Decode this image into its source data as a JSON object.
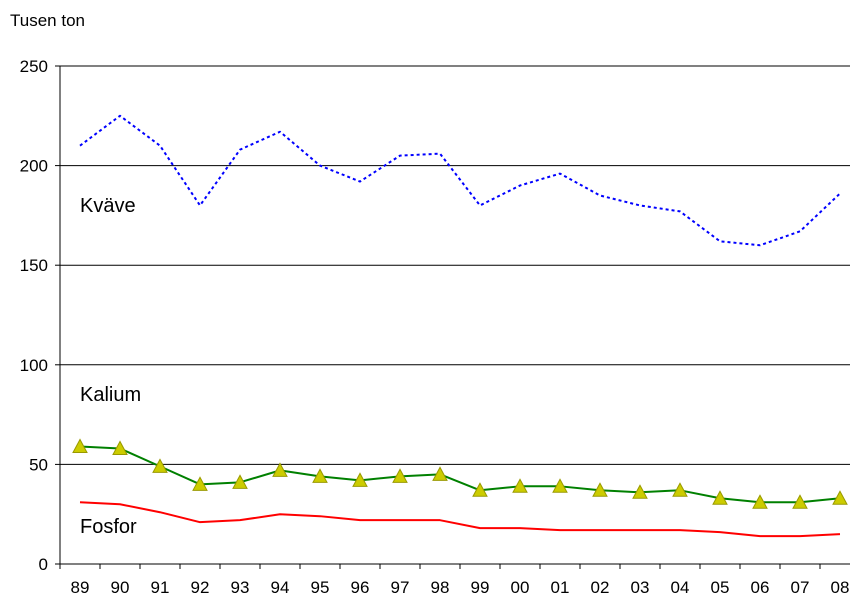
{
  "chart_data": {
    "type": "line",
    "ylabel": "Tusen ton",
    "xlabel": "",
    "ylim": [
      0,
      250
    ],
    "yticks": [
      0,
      50,
      100,
      150,
      200,
      250
    ],
    "grid": true,
    "categories": [
      "89",
      "90",
      "91",
      "92",
      "93",
      "94",
      "95",
      "96",
      "97",
      "98",
      "99",
      "00",
      "01",
      "02",
      "03",
      "04",
      "05",
      "06",
      "07",
      "08"
    ],
    "series": [
      {
        "name": "Kväve",
        "color": "#0000FF",
        "style": "dotted",
        "marker": "none",
        "values": [
          210,
          225,
          210,
          180,
          208,
          217,
          200,
          192,
          205,
          206,
          180,
          190,
          196,
          185,
          180,
          177,
          162,
          160,
          167,
          186
        ]
      },
      {
        "name": "Kalium",
        "color": "#008000",
        "style": "solid",
        "marker": "triangle",
        "marker_color": "#CCCC00",
        "values": [
          59,
          58,
          49,
          40,
          41,
          47,
          44,
          42,
          44,
          45,
          37,
          39,
          39,
          37,
          36,
          37,
          33,
          31,
          31,
          33
        ]
      },
      {
        "name": "Fosfor",
        "color": "#FF0000",
        "style": "solid",
        "marker": "none",
        "values": [
          31,
          30,
          26,
          21,
          22,
          25,
          24,
          22,
          22,
          22,
          18,
          18,
          17,
          17,
          17,
          17,
          16,
          14,
          14,
          15
        ]
      }
    ]
  }
}
